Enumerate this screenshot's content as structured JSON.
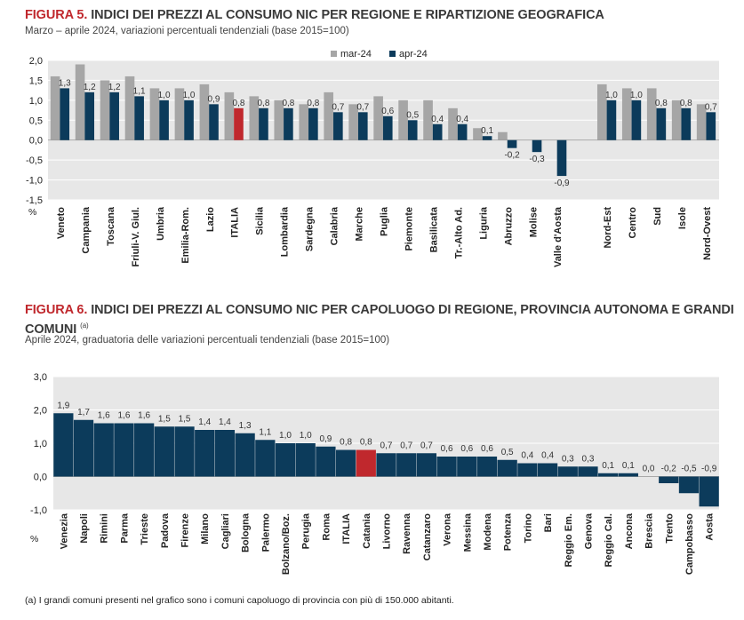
{
  "figure5": {
    "number": "FIGURA 5.",
    "title": "INDICI DEI PREZZI AL CONSUMO NIC PER REGIONE E RIPARTIZIONE GEOGRAFICA",
    "subtitle": "Marzo – aprile 2024, variazioni percentuali tendenziali (base 2015=100)"
  },
  "figure6": {
    "number": "FIGURA 6.",
    "title_line1": "INDICI DEI PREZZI AL CONSUMO NIC PER CAPOLUOGO DI REGIONE, PROVINCIA AUTONOMA E GRANDI",
    "title_line2": "COMUNI",
    "note_mark": "(a)",
    "subtitle": "Aprile 2024, graduatoria delle variazioni percentuali tendenziali (base 2015=100)"
  },
  "footnote": "(a)  I grandi comuni presenti nel grafico sono i comuni capoluogo di provincia con più di 150.000 abitanti.",
  "colors": {
    "mar": "#a6a6a6",
    "apr": "#0c3b5b",
    "highlight": "#c0282d",
    "title_accent": "#c0282d"
  },
  "chart_data": [
    {
      "type": "bar",
      "ylabel": "%",
      "ylim": [
        -1.5,
        2.0
      ],
      "yticks": [
        "2,0",
        "1,5",
        "1,0",
        "0,5",
        "0,0",
        "-0,5",
        "-1,0",
        "-1,5"
      ],
      "legend_position": "top-center",
      "highlight_category": "ITALIA",
      "categories": [
        "Veneto",
        "Campania",
        "Toscana",
        "Friuli-V. Giul.",
        "Umbria",
        "Emilia-Rom.",
        "Lazio",
        "ITALIA",
        "Sicilia",
        "Lombardia",
        "Sardegna",
        "Calabria",
        "Marche",
        "Puglia",
        "Piemonte",
        "Basilicata",
        "Tr.-Alto Ad.",
        "Liguria",
        "Abruzzo",
        "Molise",
        "Valle d'Aosta",
        "",
        "Nord-Est",
        "Centro",
        "Sud",
        "Isole",
        "Nord-Ovest"
      ],
      "series": [
        {
          "name": "mar-24",
          "values": [
            1.6,
            1.9,
            1.5,
            1.6,
            1.3,
            1.3,
            1.4,
            1.2,
            1.1,
            1.0,
            0.9,
            1.2,
            0.9,
            1.1,
            1.0,
            1.0,
            0.8,
            0.3,
            0.2,
            0.0,
            0.0,
            null,
            1.4,
            1.3,
            1.3,
            1.0,
            0.9
          ]
        },
        {
          "name": "apr-24",
          "values": [
            1.3,
            1.2,
            1.2,
            1.1,
            1.0,
            1.0,
            0.9,
            0.8,
            0.8,
            0.8,
            0.8,
            0.7,
            0.7,
            0.6,
            0.5,
            0.4,
            0.4,
            0.1,
            -0.2,
            -0.3,
            -0.9,
            null,
            1.0,
            1.0,
            0.8,
            0.8,
            0.7
          ]
        }
      ],
      "data_labels": [
        "1,3",
        "1,2",
        "1,2",
        "1,1",
        "1,0",
        "1,0",
        "0,9",
        "0,8",
        "0,8",
        "0,8",
        "0,8",
        "0,7",
        "0,7",
        "0,6",
        "0,5",
        "0,4",
        "0,4",
        "0,1",
        "-0,2",
        "-0,3",
        "-0,9",
        "",
        "1,0",
        "1,0",
        "0,8",
        "0,8",
        "0,7"
      ]
    },
    {
      "type": "bar",
      "ylabel": "%",
      "ylim": [
        -1.0,
        3.0
      ],
      "yticks": [
        "3,0",
        "2,0",
        "1,0",
        "0,0",
        "-1,0"
      ],
      "highlight_category": "Catania",
      "categories": [
        "Venezia",
        "Napoli",
        "Rimini",
        "Parma",
        "Trieste",
        "Padova",
        "Firenze",
        "Milano",
        "Cagliari",
        "Bologna",
        "Palermo",
        "Bolzano/Boz.",
        "Perugia",
        "Roma",
        "ITALIA",
        "Catania",
        "Livorno",
        "Ravenna",
        "Catanzaro",
        "Verona",
        "Messina",
        "Modena",
        "Potenza",
        "Torino",
        "Bari",
        "Reggio Em.",
        "Genova",
        "Reggio Cal.",
        "Ancona",
        "Brescia",
        "Trento",
        "Campobasso",
        "Aosta"
      ],
      "values": [
        1.9,
        1.7,
        1.6,
        1.6,
        1.6,
        1.5,
        1.5,
        1.4,
        1.4,
        1.3,
        1.1,
        1.0,
        1.0,
        0.9,
        0.8,
        0.8,
        0.7,
        0.7,
        0.7,
        0.6,
        0.6,
        0.6,
        0.5,
        0.4,
        0.4,
        0.3,
        0.3,
        0.1,
        0.1,
        0.0,
        -0.2,
        -0.5,
        -0.9
      ],
      "data_labels": [
        "1,9",
        "1,7",
        "1,6",
        "1,6",
        "1,6",
        "1,5",
        "1,5",
        "1,4",
        "1,4",
        "1,3",
        "1,1",
        "1,0",
        "1,0",
        "0,9",
        "0,8",
        "0,8",
        "0,7",
        "0,7",
        "0,7",
        "0,6",
        "0,6",
        "0,6",
        "0,5",
        "0,4",
        "0,4",
        "0,3",
        "0,3",
        "0,1",
        "0,1",
        "0,0",
        "-0,2",
        "-0,5",
        "-0,9"
      ]
    }
  ]
}
